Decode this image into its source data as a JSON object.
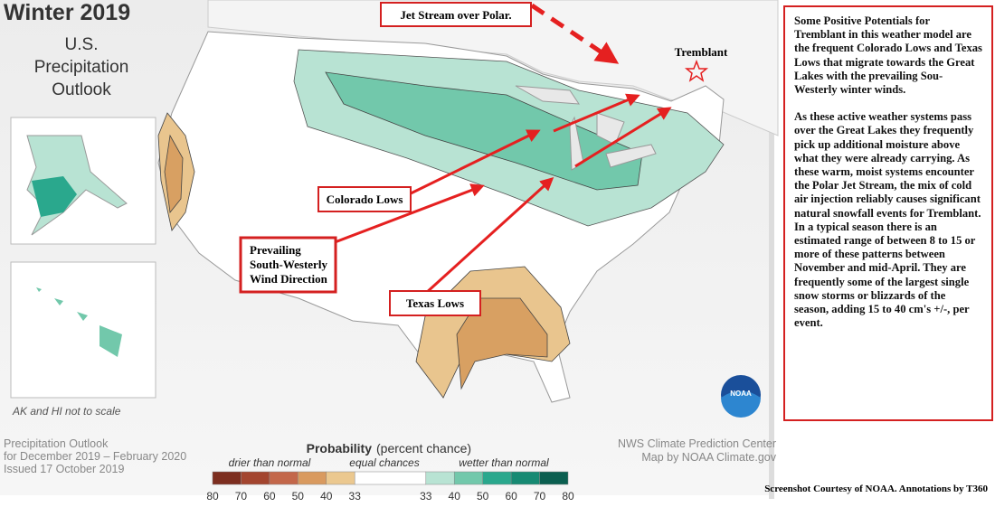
{
  "title": {
    "main": "Winter 2019",
    "sub": [
      "U.S.",
      "Precipitation",
      "Outlook"
    ]
  },
  "inset_note": "AK and HI not to scale",
  "annotations": {
    "jet": "Jet Stream over Polar.",
    "tremblant": "Tremblant",
    "colorado": "Colorado Lows",
    "wind": [
      "Prevailing",
      "South-Westerly",
      "Wind Direction"
    ],
    "texas": "Texas Lows"
  },
  "legend": {
    "title": "Probability",
    "title_note": "(percent chance)",
    "categories": [
      "drier than normal",
      "equal chances",
      "wetter than normal"
    ],
    "scale": [
      80,
      70,
      60,
      50,
      40,
      33,
      33,
      40,
      50,
      60,
      70,
      80
    ]
  },
  "footer": {
    "left": [
      "Precipitation Outlook",
      "for December 2019 – February 2020",
      "Issued 17 October 2019"
    ],
    "right": [
      "NWS Climate Prediction Center",
      "Map by NOAA Climate.gov"
    ],
    "credit": "Screenshot Courtesy of NOAA. Annotations by T360"
  },
  "logo": "NOAA",
  "sidebar": {
    "paragraphs": [
      "Some Positive Potentials for Tremblant in this weather model are the frequent Colorado Lows and Texas Lows that migrate towards the Great Lakes with the prevailing Sou-Westerly winter winds.",
      "As these active weather systems pass over the Great Lakes they frequently pick up additional moisture above what they were already carrying. As these warm, moist systems encounter the Polar Jet Stream, the mix of cold air injection reliably causes significant natural snowfall events for Tremblant. In a typical season there is an estimated range of between 8 to 15 or more of these patterns between November and mid-April. They are frequently some of the largest single snow storms or blizzards of the season, adding 15 to 40 cm's +/-, per event."
    ]
  }
}
